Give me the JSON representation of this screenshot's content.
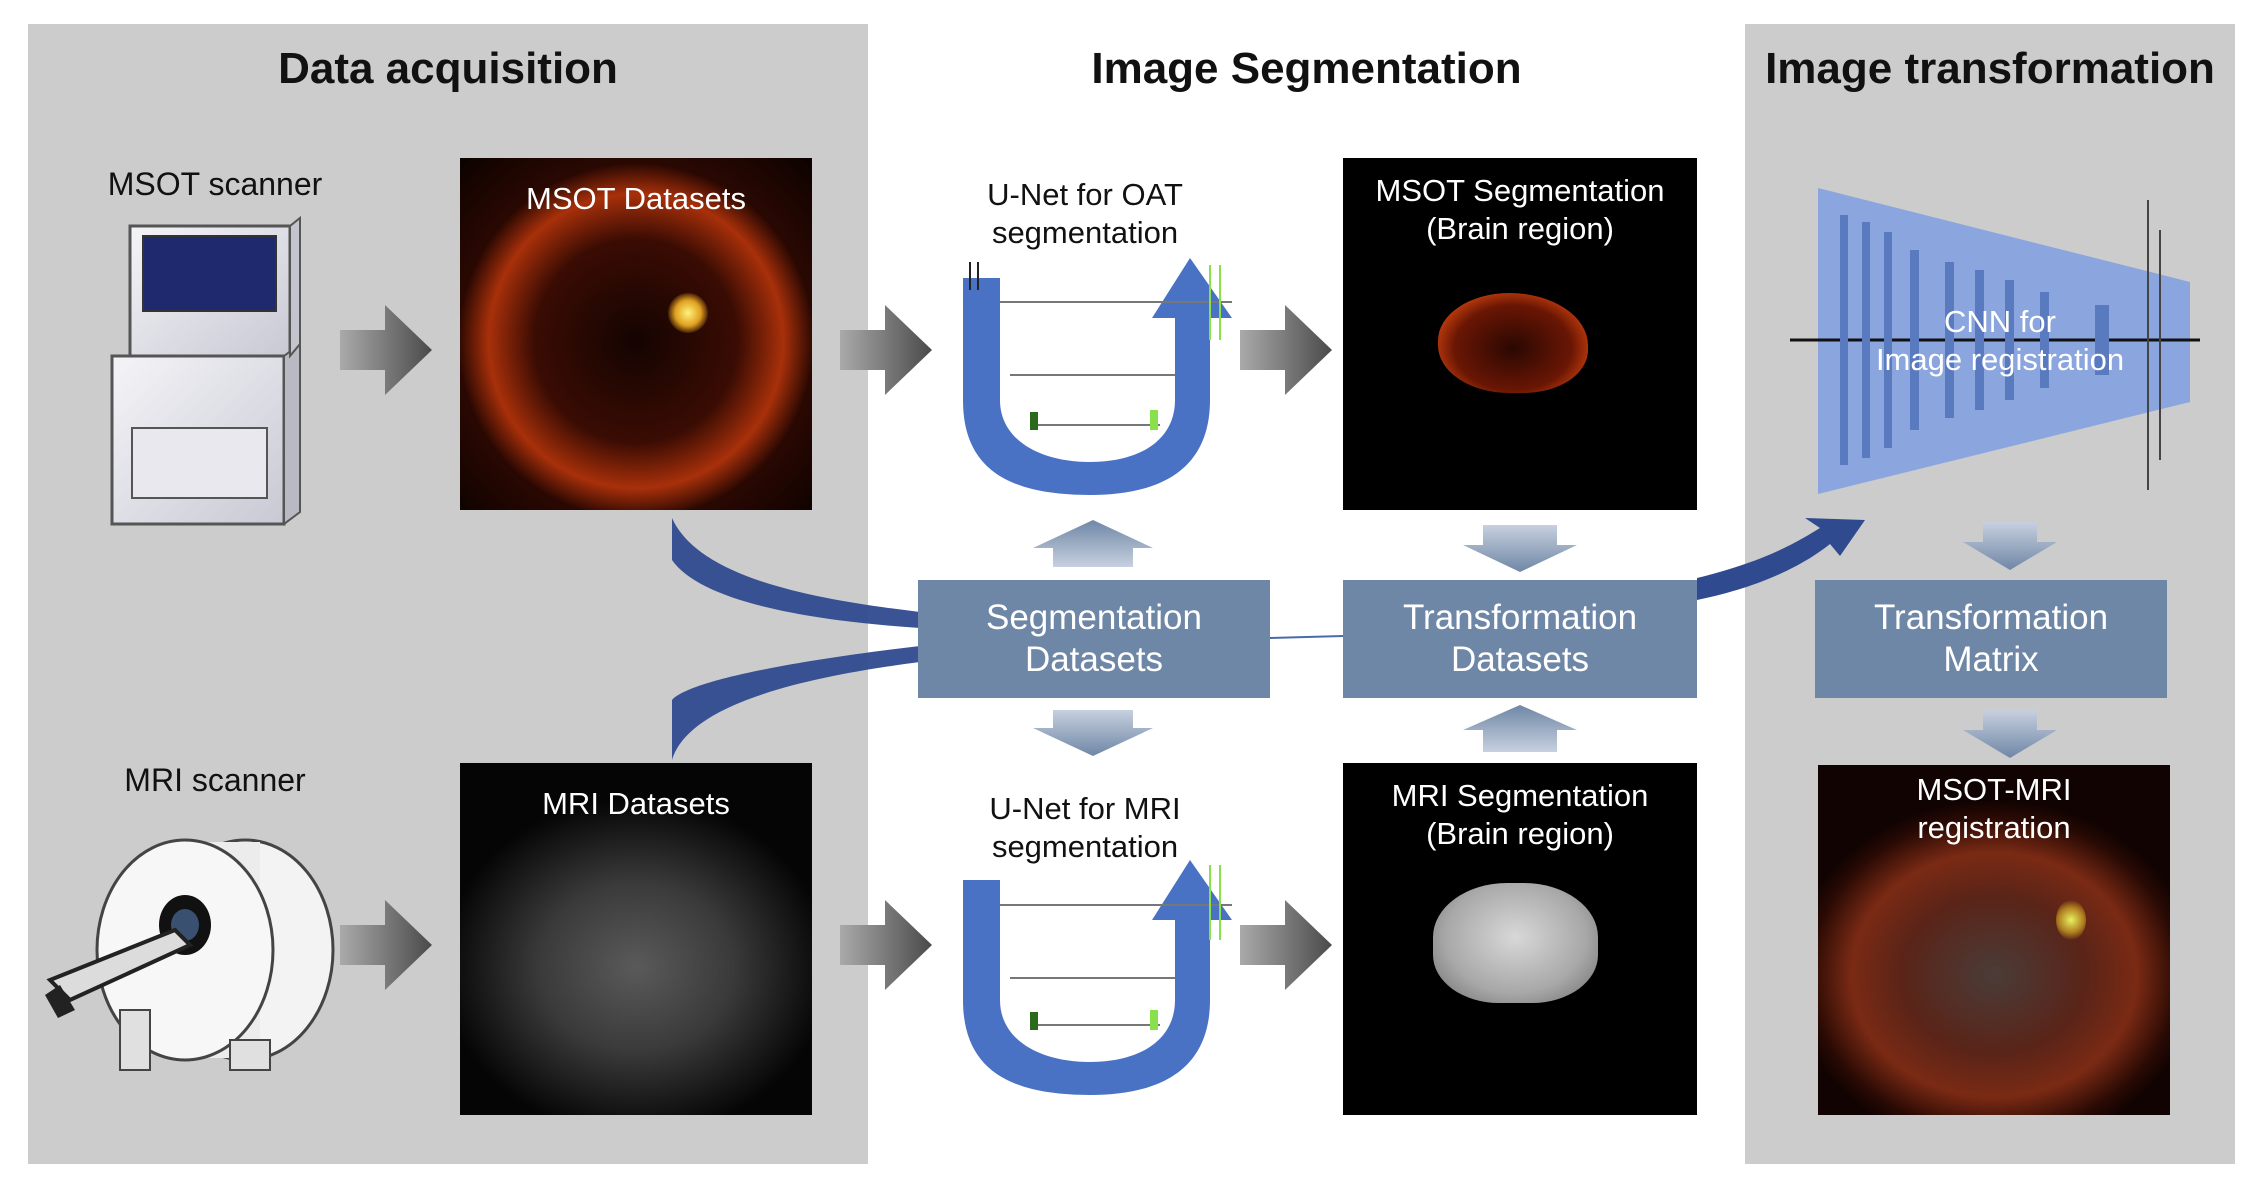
{
  "sections": {
    "acquisition": "Data acquisition",
    "segmentation": "Image Segmentation",
    "transformation": "Image transformation"
  },
  "scanners": {
    "msot": "MSOT scanner",
    "mri": "MRI scanner"
  },
  "images": {
    "msot_datasets": "MSOT Datasets",
    "mri_datasets": "MRI Datasets",
    "msot_seg_line1": "MSOT Segmentation",
    "msot_seg_line2": "(Brain region)",
    "mri_seg_line1": "MRI Segmentation",
    "mri_seg_line2": "(Brain region)",
    "registration_line1": "MSOT-MRI",
    "registration_line2": "registration"
  },
  "networks": {
    "unet_oat_line1": "U-Net for OAT",
    "unet_oat_line2": "segmentation",
    "unet_mri_line1": "U-Net for MRI",
    "unet_mri_line2": "segmentation",
    "cnn_line1": "CNN for",
    "cnn_line2": "Image registration"
  },
  "boxes": {
    "seg_line1": "Segmentation",
    "seg_line2": "Datasets",
    "trans_line1": "Transformation",
    "trans_line2": "Datasets",
    "matrix_line1": "Transformation",
    "matrix_line2": "Matrix"
  },
  "colors": {
    "panel": "#cccccc",
    "box": "#6f87a6",
    "unet_blue": "#4a72c4",
    "flow_blue": "#2f4a8f",
    "cnn_blue": "#7f9ee0"
  }
}
